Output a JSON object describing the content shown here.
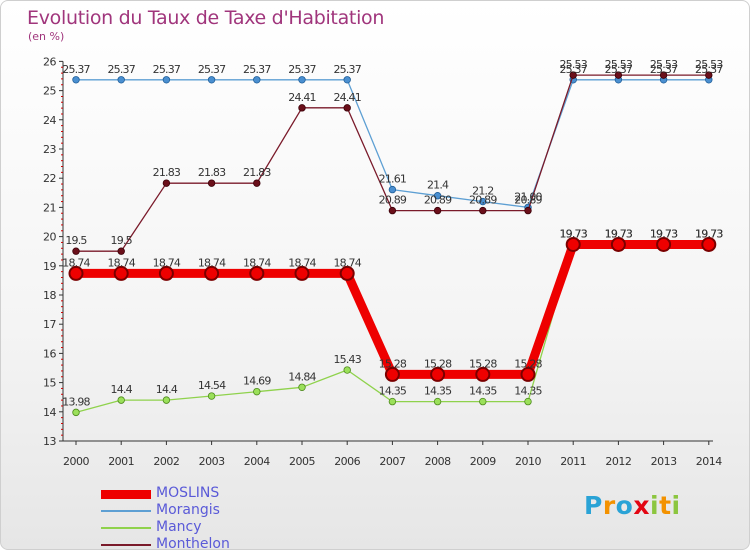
{
  "title": "Evolution du Taux de Taxe d'Habitation",
  "subtitle": "(en %)",
  "logo": {
    "letters": [
      "P",
      "r",
      "o",
      "x",
      "i",
      "t",
      "i"
    ],
    "colors": [
      "#2aa3d6",
      "#f39200",
      "#2aa3d6",
      "#e30613",
      "#8cc63f",
      "#f39200",
      "#8cc63f"
    ]
  },
  "chart_data": {
    "type": "line",
    "title": "Evolution du Taux de Taxe d'Habitation",
    "ylabel": "(en %)",
    "xlabel": "",
    "ylim": [
      13,
      26
    ],
    "yticks": [
      13,
      14,
      15,
      16,
      17,
      18,
      19,
      20,
      21,
      22,
      23,
      24,
      25,
      26
    ],
    "categories": [
      "2000",
      "2001",
      "2002",
      "2003",
      "2004",
      "2005",
      "2006",
      "2007",
      "2008",
      "2009",
      "2010",
      "2011",
      "2012",
      "2013",
      "2014"
    ],
    "grid": false,
    "legend": "bottom-left",
    "series": [
      {
        "name": "Morangis",
        "color": "#5d9fd3",
        "values": [
          25.37,
          25.37,
          25.37,
          25.37,
          25.37,
          25.37,
          25.37,
          21.61,
          21.4,
          21.2,
          21.0,
          25.37,
          25.37,
          25.37,
          25.37
        ],
        "labels": [
          "25.37",
          "25.37",
          "25.37",
          "25.37",
          "25.37",
          "25.37",
          "25.37",
          "21.61",
          "21.4",
          "21.2",
          "21.00",
          "25.37",
          "25.37",
          "25.37",
          "25.37"
        ]
      },
      {
        "name": "Mancy",
        "color": "#8fd24c",
        "values": [
          13.98,
          14.4,
          14.4,
          14.54,
          14.69,
          14.84,
          15.43,
          14.35,
          14.35,
          14.35,
          14.35,
          19.73,
          19.73,
          19.73,
          19.73
        ],
        "labels": [
          "13.98",
          "14.4",
          "14.4",
          "14.54",
          "14.69",
          "14.84",
          "15.43",
          "14.35",
          "14.35",
          "14.35",
          "14.35",
          "19.73",
          "19.73",
          "19.73",
          "19.73"
        ]
      },
      {
        "name": "Monthelon",
        "color": "#7a1a2a",
        "values": [
          19.5,
          19.5,
          21.83,
          21.83,
          21.83,
          24.41,
          24.41,
          20.89,
          20.89,
          20.89,
          20.89,
          25.53,
          25.53,
          25.53,
          25.53
        ],
        "labels": [
          "19.5",
          "19.5",
          "21.83",
          "21.83",
          "21.83",
          "24.41",
          "24.41",
          "20.89",
          "20.89",
          "20.89",
          "20.89",
          "25.53",
          "25.53",
          "25.53",
          "25.53"
        ]
      },
      {
        "name": "MOSLINS",
        "color": "#ee0000",
        "values": [
          18.74,
          18.74,
          18.74,
          18.74,
          18.74,
          18.74,
          18.74,
          15.28,
          15.28,
          15.28,
          15.28,
          19.73,
          19.73,
          19.73,
          19.73
        ],
        "labels": [
          "18.74",
          "18.74",
          "18.74",
          "18.74",
          "18.74",
          "18.74",
          "18.74",
          "15.28",
          "15.28",
          "15.28",
          "15.28",
          "19.73",
          "19.73",
          "19.73",
          "19.73"
        ]
      }
    ],
    "legend_order": [
      "MOSLINS",
      "Morangis",
      "Mancy",
      "Monthelon"
    ]
  }
}
